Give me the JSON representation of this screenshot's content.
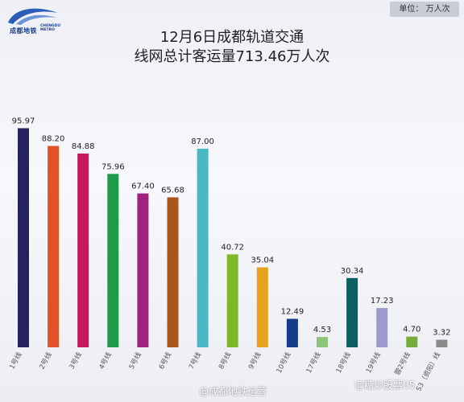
{
  "logo": {
    "cn": "成都地铁",
    "en1": "CHENGDU",
    "en2": "METRO",
    "brand_color": "#1d3f8a",
    "icon": "chengdu-metro-logo-icon"
  },
  "unit_label": "单位： 万人次",
  "title_line1": "12月6日成都轨道交通",
  "title_line2": "线网总计客运量713.46万人次",
  "watermark_left": "@成都地铁运营",
  "watermark_right": "@糖炒股票05",
  "chart_data": {
    "type": "bar",
    "title": "12月6日成都轨道交通 线网总计客运量713.46万人次",
    "ylabel": "",
    "xlabel": "",
    "unit": "万人次",
    "ylim": [
      0,
      100
    ],
    "grid": false,
    "categories": [
      "1号线",
      "2号线",
      "3号线",
      "4号线",
      "5号线",
      "6号线",
      "7号线",
      "8号线",
      "9号线",
      "10号线",
      "17号线",
      "18号线",
      "19号线",
      "蓉2号线",
      "S3（资阳）线"
    ],
    "values": [
      95.97,
      88.2,
      84.88,
      75.96,
      67.4,
      65.68,
      87.0,
      40.72,
      35.04,
      12.49,
      4.53,
      30.34,
      17.23,
      4.7,
      3.32
    ],
    "value_labels": [
      "95.97",
      "88.20",
      "84.88",
      "75.96",
      "67.40",
      "65.68",
      "87.00",
      "40.72",
      "35.04",
      "12.49",
      "4.53",
      "30.34",
      "17.23",
      "4.70",
      "3.32"
    ],
    "colors": [
      "#24235f",
      "#e2512a",
      "#c8175b",
      "#1f9a48",
      "#a0227f",
      "#a8561c",
      "#4ab7c7",
      "#7cb82a",
      "#e9a31a",
      "#153d8a",
      "#8cc47c",
      "#0c5f5f",
      "#9b9ccd",
      "#76ad3a",
      "#8a8a8a"
    ]
  }
}
